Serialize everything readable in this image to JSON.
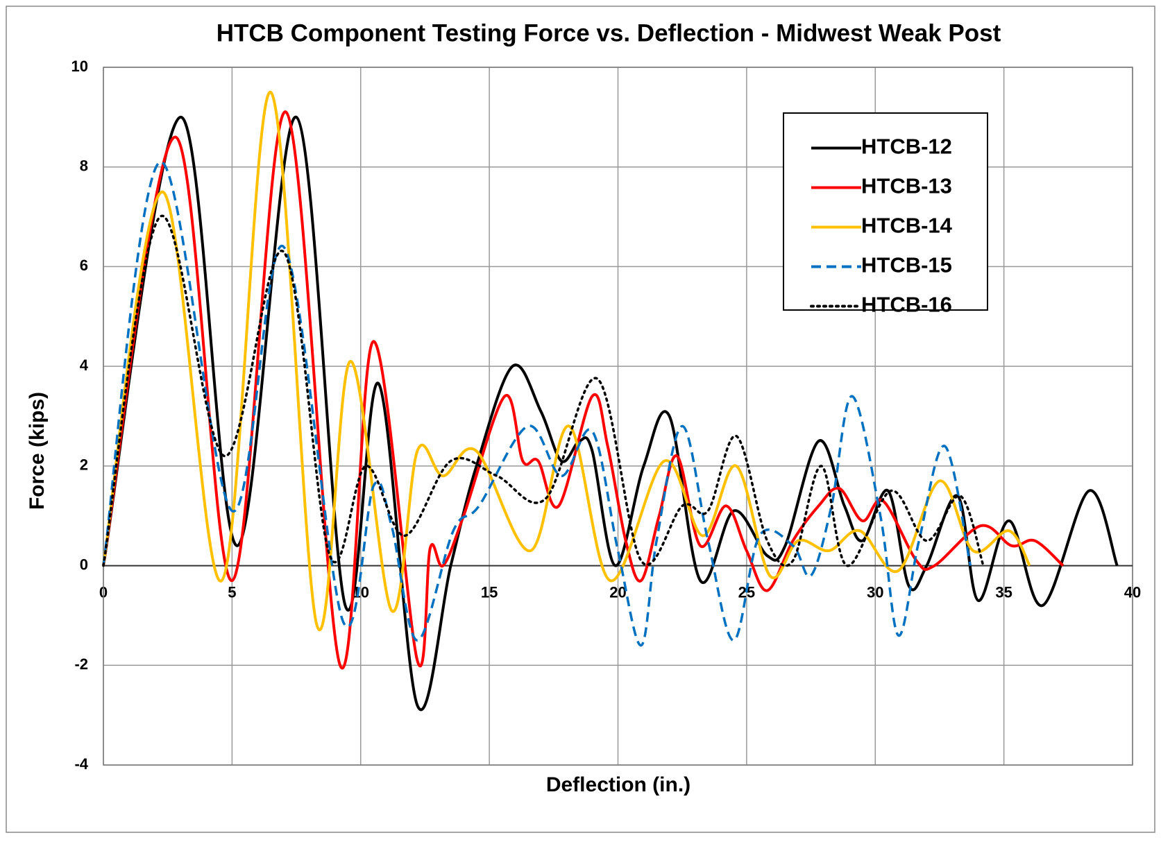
{
  "chart_data": {
    "type": "line",
    "title": "HTCB Component Testing Force vs. Deflection - Midwest Weak Post",
    "x_label": "Deflection (in.)",
    "y_label": "Force (kips)",
    "xlim": [
      0,
      40
    ],
    "xticks": [
      0,
      5,
      10,
      15,
      20,
      25,
      30,
      35,
      40
    ],
    "ylim": [
      -4,
      10
    ],
    "yticks": [
      -4,
      -2,
      0,
      2,
      4,
      6,
      8,
      10
    ],
    "grid": true,
    "legend": "upper right",
    "series": [
      {
        "name": "HTCB-12",
        "color": "#000000",
        "dash": "solid",
        "x": [
          0,
          3.0,
          5.2,
          7.5,
          9.4,
          10.7,
          12.2,
          13.5,
          14.5,
          15.9,
          17,
          17.8,
          18.5,
          19,
          19.9,
          21,
          22,
          23.2,
          24.5,
          25.8,
          26.5,
          27.8,
          28.8,
          29.5,
          30.5,
          31.3,
          32,
          33.2,
          34,
          35.2,
          36.5,
          38.3,
          39.4
        ],
        "values": [
          0,
          9.0,
          0.4,
          9.0,
          -0.8,
          3.65,
          -2.8,
          0,
          2.0,
          4.0,
          3.1,
          2.1,
          2.5,
          2.3,
          0,
          2.0,
          3.0,
          -0.3,
          1.1,
          0.2,
          0.4,
          2.5,
          1.2,
          0.5,
          1.5,
          -0.4,
          0,
          1.4,
          -0.7,
          0.9,
          -0.8,
          1.5,
          0
        ]
      },
      {
        "name": "HTCB-13",
        "color": "#ff0000",
        "dash": "solid",
        "x": [
          0,
          2.8,
          5.0,
          7.1,
          9.2,
          10.5,
          12.2,
          12.7,
          13.2,
          14,
          15.6,
          16.3,
          16.9,
          17.7,
          19,
          19.6,
          20.3,
          20.9,
          21.6,
          22.3,
          23.2,
          24.2,
          25,
          25.8,
          26.8,
          27.8,
          28.6,
          29.5,
          30.3,
          31.6,
          32.3,
          34.1,
          35.3,
          36.2,
          37.3
        ],
        "values": [
          0,
          8.6,
          -0.3,
          9.1,
          -2.0,
          4.5,
          -1.9,
          0.35,
          0,
          1.0,
          3.4,
          2.1,
          2.1,
          1.2,
          3.4,
          2.4,
          0.5,
          -0.3,
          1.0,
          2.2,
          0.4,
          1.2,
          0.3,
          -0.5,
          0.5,
          1.2,
          1.55,
          0.9,
          1.3,
          0.1,
          0,
          0.8,
          0.4,
          0.5,
          0
        ]
      },
      {
        "name": "HTCB-14",
        "color": "#ffc000",
        "dash": "solid",
        "x": [
          0,
          2.3,
          4.6,
          6.5,
          8.3,
          9.6,
          11.2,
          12.2,
          13.2,
          14.5,
          16.6,
          18.1,
          19.7,
          21.8,
          23.3,
          24.6,
          25.9,
          27,
          28.2,
          29.4,
          30.9,
          32.5,
          33.8,
          35.2,
          36.0
        ],
        "values": [
          0,
          7.5,
          -0.3,
          9.5,
          -1.2,
          4.1,
          -0.9,
          2.3,
          1.8,
          2.3,
          0.3,
          2.8,
          -0.3,
          2.1,
          0.6,
          2.0,
          -0.2,
          0.5,
          0.3,
          0.7,
          -0.1,
          1.7,
          0.3,
          0.7,
          0
        ]
      },
      {
        "name": "HTCB-15",
        "color": "#0070c0",
        "dash": "dashed",
        "x": [
          0,
          2.2,
          5.0,
          7.0,
          9.3,
          10.5,
          11.2,
          12.2,
          13.6,
          14.6,
          16.5,
          17.8,
          19,
          20,
          20.9,
          21.5,
          22.5,
          23.5,
          24.5,
          25.5,
          26.8,
          27.5,
          28.3,
          29.1,
          30.2,
          30.9,
          31.7,
          32.7,
          33.7
        ],
        "values": [
          0,
          8.1,
          1.1,
          6.4,
          -1.1,
          1.6,
          0.8,
          -1.5,
          0.7,
          1.2,
          2.8,
          1.8,
          2.7,
          0.3,
          -1.6,
          0.5,
          2.8,
          0.5,
          -1.5,
          0.6,
          0.4,
          -0.2,
          1.2,
          3.4,
          1.0,
          -1.4,
          0.5,
          2.4,
          0
        ]
      },
      {
        "name": "HTCB-16",
        "color": "#000000",
        "dash": "dotted",
        "x": [
          0,
          2.2,
          4.7,
          7.0,
          8.8,
          10.2,
          11.7,
          13.5,
          15.3,
          17.2,
          19.2,
          20.9,
          22.5,
          23.5,
          24.6,
          25.8,
          26.8,
          27.9,
          28.9,
          30.6,
          32,
          33.3,
          34.2
        ],
        "values": [
          0,
          7.0,
          2.2,
          6.3,
          0.2,
          2.0,
          0.6,
          2.1,
          1.8,
          1.35,
          3.75,
          0.1,
          1.2,
          1.1,
          2.6,
          0.5,
          0.1,
          2.0,
          0,
          1.5,
          0.5,
          1.4,
          0
        ]
      }
    ]
  }
}
